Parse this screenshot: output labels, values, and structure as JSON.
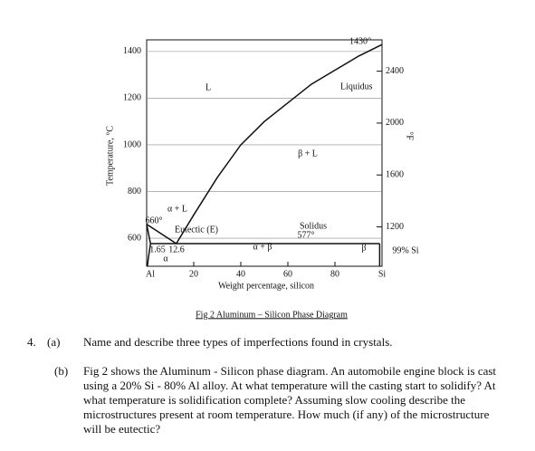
{
  "chart_data": {
    "type": "line",
    "y_label": "Temperature, °C",
    "y2_label": "°F",
    "x_label": "Weight percentage, silicon",
    "caption": "Fig 2   Aluminum – Silicon Phase Diagram",
    "series": [
      {
        "name": "Liquidus",
        "color": "#111111",
        "x": [
          12.6,
          20,
          30,
          40,
          50,
          60,
          70,
          80,
          90,
          100
        ],
        "values": [
          577,
          700,
          860,
          1000,
          1100,
          1180,
          1260,
          1320,
          1380,
          1430
        ]
      },
      {
        "color": "#111111",
        "x": [
          0,
          12.6
        ],
        "values": [
          660,
          577
        ]
      },
      {
        "name": "Solidus",
        "color": "#111111",
        "x": [
          1.65,
          99
        ],
        "values": [
          577,
          577
        ]
      },
      {
        "color": "#111111",
        "x": [
          0,
          1.65
        ],
        "values": [
          660,
          577
        ]
      },
      {
        "color": "#111111",
        "x": [
          1.65,
          0.8,
          0.3
        ],
        "values": [
          577,
          520,
          480
        ]
      },
      {
        "color": "#111111",
        "x": [
          99,
          99
        ],
        "values": [
          480,
          577
        ]
      }
    ],
    "annotations": [
      "L",
      "α + L",
      "β + L",
      "α + β",
      "Eutectic (E)",
      "660°",
      "577°",
      "1430°",
      "1.65",
      "12.6",
      "α",
      "β",
      "99% Si"
    ],
    "xlim": [
      0,
      100
    ],
    "xticks": [
      {
        "value": 0,
        "label": "Al"
      },
      20,
      40,
      60,
      80,
      {
        "value": 100,
        "label": "Si"
      }
    ],
    "ylim": [
      480,
      1450
    ],
    "yticks": [
      600,
      800,
      1000,
      1200,
      1400
    ],
    "y2lim": [
      896,
      2642
    ],
    "y2ticks": [
      1200,
      1600,
      2000,
      2400
    ],
    "grid": true
  },
  "question": {
    "number": "4.",
    "a": {
      "label": "(a)",
      "text": "Name and describe three types of imperfections found in crystals."
    },
    "b": {
      "label": "(b)",
      "lines": [
        "Fig 2 shows the Aluminum - Silicon phase diagram. An automobile engine block is cast",
        "using a 20% Si - 80% Al alloy. At what temperature will the casting start to solidify?  At",
        "what temperature is solidification complete? Assuming slow cooling describe the",
        "microstructures present at room temperature. How much (if any) of the microstructure",
        "will be eutectic?"
      ]
    }
  }
}
